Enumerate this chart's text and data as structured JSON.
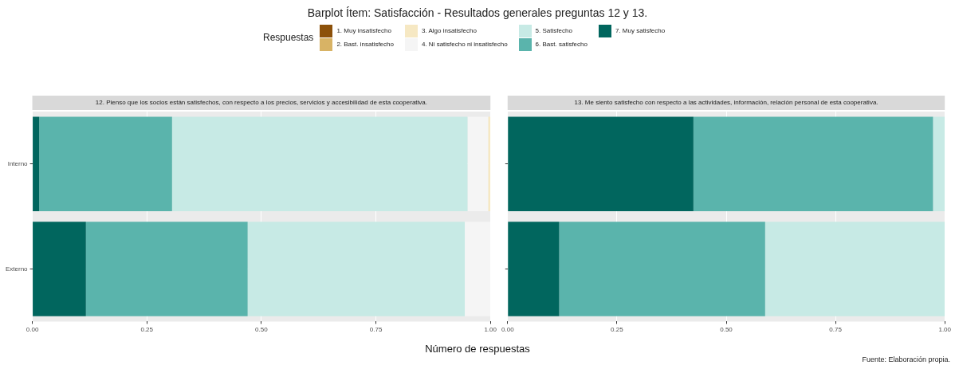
{
  "chart_data": [
    {
      "type": "bar",
      "orientation": "horizontal",
      "stacked": true,
      "title": "Barplot Ítem: Satisfacción - Resultados generales preguntas 12 y 13.",
      "subtitle": "12. Pienso que los socios están satisfechos, con respecto a los precios, servicios y accesibilidad de esta cooperativa.",
      "xlabel": "Número de respuestas",
      "legend_title": "Respuestas",
      "legend": "top",
      "grid": true,
      "categories": [
        "Interno",
        "Externo"
      ],
      "xlim": [
        0,
        1
      ],
      "xticks": [
        {
          "value": 0,
          "label": "0.00"
        },
        {
          "value": 0.25,
          "label": "0.25"
        },
        {
          "value": 0.5,
          "label": "0.50"
        },
        {
          "value": 0.75,
          "label": "0.75"
        },
        {
          "value": 1,
          "label": "1.00"
        }
      ],
      "series": [
        {
          "name": "7. Muy satisfecho",
          "color": "#01665e",
          "values": [
            0.015,
            0.117
          ]
        },
        {
          "name": "6. Bast. satisfecho",
          "color": "#5ab4ac",
          "values": [
            0.29,
            0.353
          ]
        },
        {
          "name": "5. Satisfecho",
          "color": "#c7eae5",
          "values": [
            0.645,
            0.474
          ]
        },
        {
          "name": "4. Ni satisfecho ni insatisfecho",
          "color": "#f5f5f5",
          "values": [
            0.045,
            0.056
          ]
        },
        {
          "name": "3. Algo insatisfecho",
          "color": "#f6e8c3",
          "values": [
            0.005,
            0
          ]
        },
        {
          "name": "2. Bast. insatisfecho",
          "color": "#d8b365",
          "values": [
            0,
            0
          ]
        },
        {
          "name": "1. Muy insatisfecho",
          "color": "#8c510a",
          "values": [
            0,
            0
          ]
        }
      ]
    },
    {
      "type": "bar",
      "orientation": "horizontal",
      "stacked": true,
      "subtitle": "13. Me siento satisfecho con respecto a las actividades, información, relación personal de esta cooperativa.",
      "grid": true,
      "tick_labels": "x",
      "xlim": [
        0,
        1
      ],
      "xticks": [
        {
          "value": 0,
          "label": "0.00"
        },
        {
          "value": 0.25,
          "label": "0.25"
        },
        {
          "value": 0.5,
          "label": "0.50"
        },
        {
          "value": 0.75,
          "label": "0.75"
        },
        {
          "value": 1,
          "label": "1.00"
        }
      ],
      "annotations": [
        "Fuente: Elaboración propia."
      ],
      "series": [
        {
          "color": "#01665e",
          "values": [
            0.425,
            0.118
          ]
        },
        {
          "color": "#5ab4ac",
          "values": [
            0.548,
            0.471
          ]
        },
        {
          "color": "#c7eae5",
          "values": [
            0.027,
            0.411
          ]
        }
      ]
    }
  ]
}
